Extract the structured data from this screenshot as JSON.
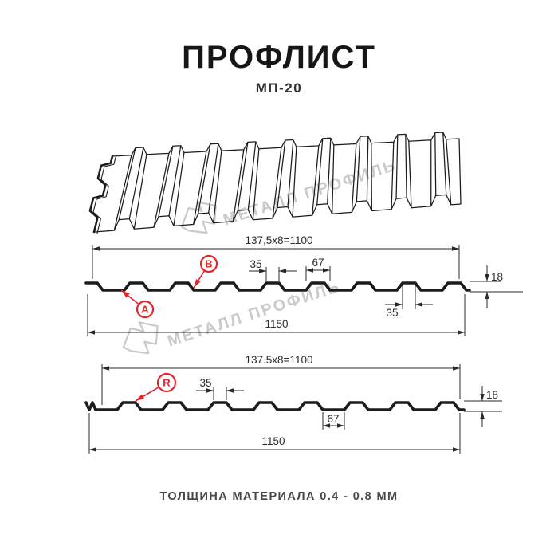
{
  "header": {
    "title": "ПРОФЛИСТ",
    "subtitle": "МП-20"
  },
  "watermark": {
    "text": "МЕТАЛЛ ПРОФИЛЬ"
  },
  "drawing": {
    "section_a": {
      "module_width": "137,5x8=1100",
      "full_width": "1150",
      "rib_top_width": "35",
      "rib_base_width": "67",
      "profile_height": "18",
      "rib_bottom_width": "35",
      "marker_a": "A",
      "marker_b": "B"
    },
    "section_r": {
      "module_width": "137.5x8=1100",
      "full_width": "1150",
      "rib_top_width": "35",
      "valley_width": "67",
      "profile_height": "18",
      "marker_r": "R"
    }
  },
  "footer": {
    "caption": "ТОЛЩИНА МАТЕРИАЛА 0.4 - 0.8 ММ"
  },
  "colors": {
    "accent": "#e8242b",
    "line": "#1c1c1c",
    "dim_line": "#2a2a2a",
    "watermark": "#cacaca"
  }
}
